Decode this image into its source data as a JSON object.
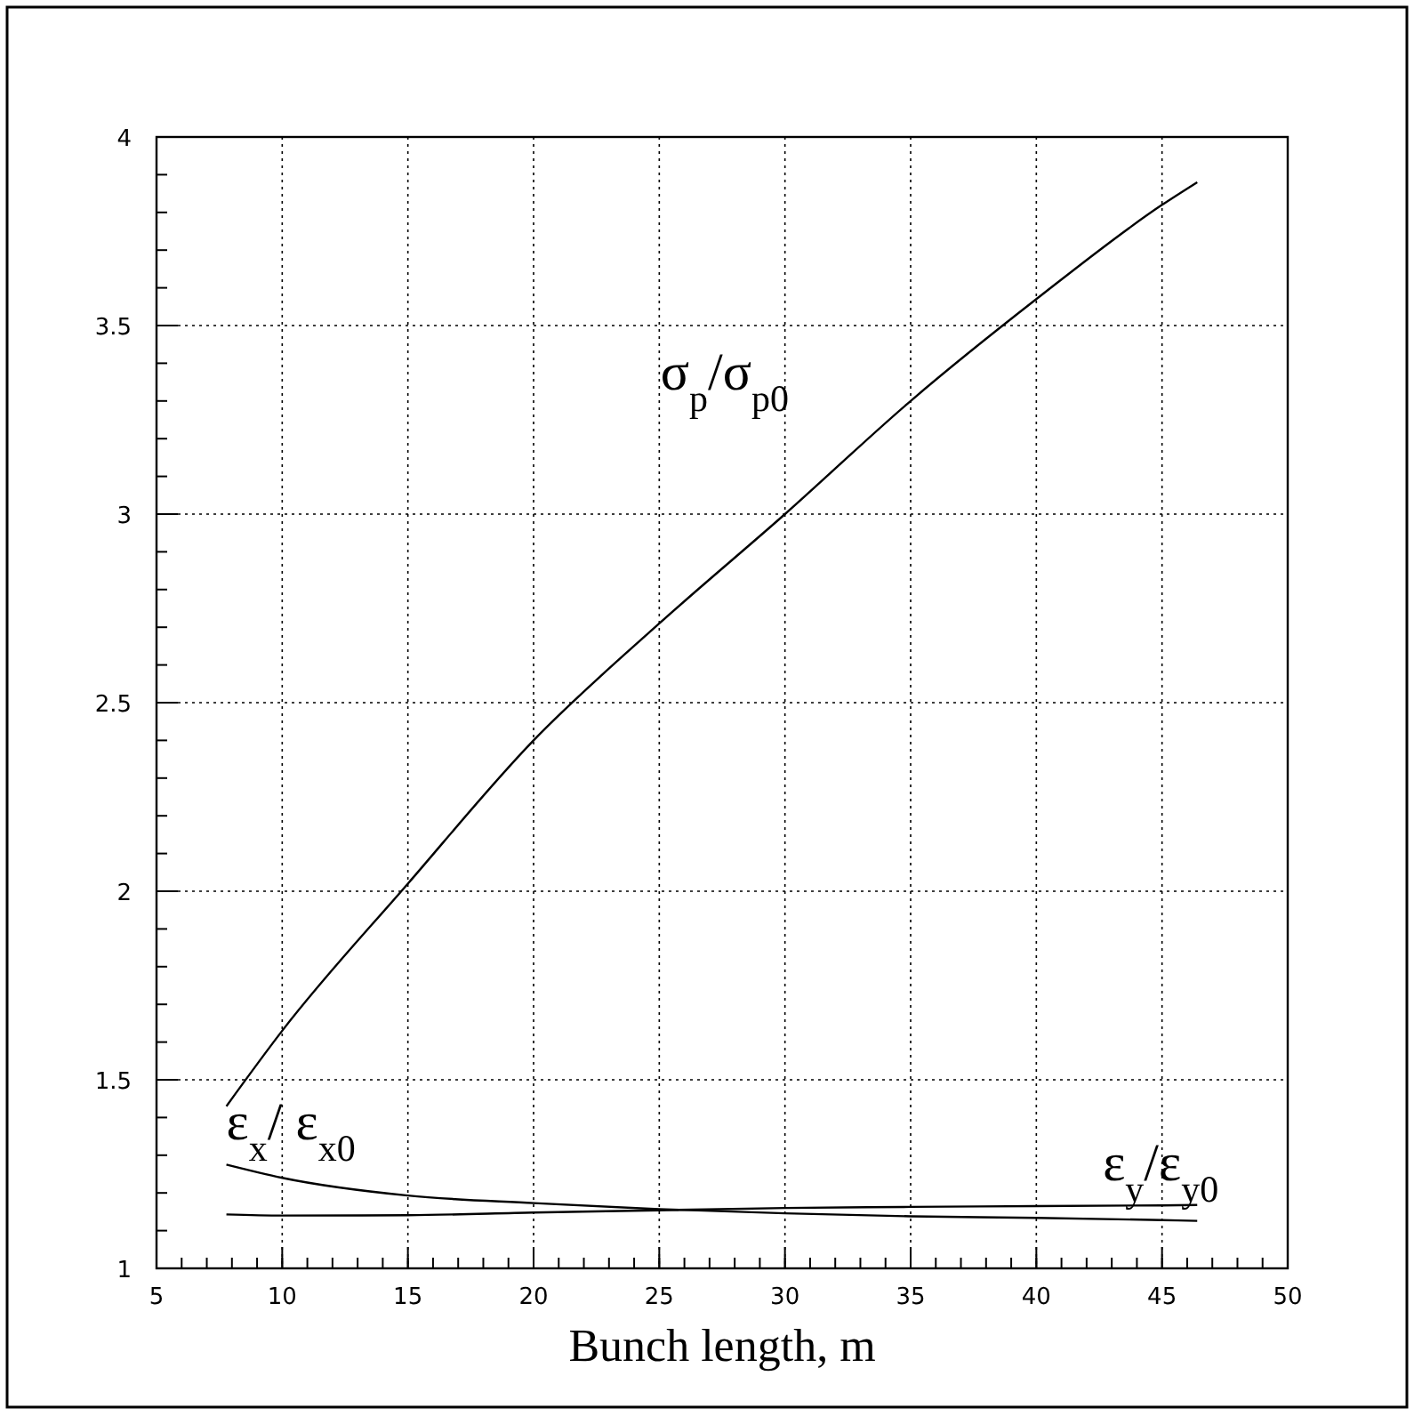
{
  "chart_data": {
    "type": "line",
    "xlabel": "Bunch length, m",
    "series": [
      {
        "name": "σ$_{p}$/σ$_{p0}$",
        "color": "#000000",
        "x": [
          7.78,
          10,
          15,
          20,
          25,
          30,
          35,
          40,
          45,
          46.4
        ],
        "values": [
          1.43,
          1.63,
          2.02,
          2.4,
          2.71,
          3.0,
          3.3,
          3.57,
          3.82,
          3.88
        ]
      },
      {
        "name": "ε$_{x}$/ ε$_{x0}$",
        "color": "#000000",
        "x": [
          7.78,
          10,
          15,
          20,
          25,
          30,
          35,
          40,
          45,
          46.4
        ],
        "values": [
          1.275,
          1.24,
          1.193,
          1.173,
          1.157,
          1.146,
          1.138,
          1.134,
          1.128,
          1.126
        ]
      },
      {
        "name": "ε$_{y}$/ε$_{y0}$",
        "color": "#000000",
        "x": [
          7.78,
          10,
          15,
          20,
          25,
          30,
          35,
          40,
          45,
          46.4
        ],
        "values": [
          1.143,
          1.14,
          1.141,
          1.148,
          1.154,
          1.16,
          1.163,
          1.165,
          1.167,
          1.168
        ]
      }
    ],
    "xlim": [
      5,
      50
    ],
    "xticks": [
      5,
      10,
      15,
      20,
      25,
      30,
      35,
      40,
      45,
      50
    ],
    "ylim": [
      1,
      4
    ],
    "yticks": [
      1,
      1.5,
      2,
      2.5,
      3,
      3.5,
      4
    ],
    "grid": true,
    "marker": "none",
    "line_style": "solid"
  }
}
